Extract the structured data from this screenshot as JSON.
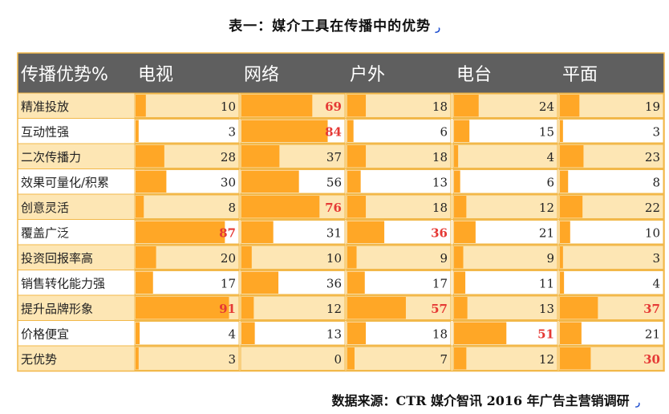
{
  "title": "表一：媒介工具在传播中的优势",
  "title_mark": "ر",
  "source": "数据来源：CTR 媒介智讯 2016 年广告主营销调研",
  "source_mark": "ر",
  "colors": {
    "header_bg": "#5f5f5f",
    "header_text": "#ffffff",
    "bar": "#ffa726",
    "row_alt": "#fde6b4",
    "row_plain": "#ffffff",
    "border": "#f2b84a",
    "highlight_text": "#e53935",
    "normal_text": "#222222"
  },
  "chart_data": {
    "type": "table",
    "header_label": "传播优势%",
    "columns": [
      "电视",
      "网络",
      "户外",
      "电台",
      "平面"
    ],
    "max_value": 100,
    "rows": [
      {
        "label": "精准投放",
        "values": [
          10,
          69,
          18,
          24,
          19
        ],
        "highlight": [
          false,
          true,
          false,
          false,
          false
        ]
      },
      {
        "label": "互动性强",
        "values": [
          3,
          84,
          6,
          15,
          3
        ],
        "highlight": [
          false,
          true,
          false,
          false,
          false
        ]
      },
      {
        "label": "二次传播力",
        "values": [
          28,
          37,
          18,
          4,
          23
        ],
        "highlight": [
          false,
          false,
          false,
          false,
          false
        ]
      },
      {
        "label": "效果可量化/积累",
        "values": [
          30,
          56,
          13,
          6,
          8
        ],
        "highlight": [
          false,
          false,
          false,
          false,
          false
        ]
      },
      {
        "label": "创意灵活",
        "values": [
          8,
          76,
          18,
          12,
          22
        ],
        "highlight": [
          false,
          true,
          false,
          false,
          false
        ]
      },
      {
        "label": "覆盖广泛",
        "values": [
          87,
          31,
          36,
          21,
          10
        ],
        "highlight": [
          true,
          false,
          true,
          false,
          false
        ]
      },
      {
        "label": "投资回报率高",
        "values": [
          20,
          10,
          9,
          9,
          3
        ],
        "highlight": [
          false,
          false,
          false,
          false,
          false
        ]
      },
      {
        "label": "销售转化能力强",
        "values": [
          17,
          36,
          17,
          11,
          4
        ],
        "highlight": [
          false,
          false,
          false,
          false,
          false
        ]
      },
      {
        "label": "提升品牌形象",
        "values": [
          91,
          12,
          57,
          13,
          37
        ],
        "highlight": [
          true,
          false,
          true,
          false,
          true
        ]
      },
      {
        "label": "价格便宜",
        "values": [
          4,
          13,
          18,
          51,
          21
        ],
        "highlight": [
          false,
          false,
          false,
          true,
          false
        ]
      },
      {
        "label": "无优势",
        "values": [
          3,
          0,
          7,
          12,
          30
        ],
        "highlight": [
          false,
          false,
          false,
          false,
          true
        ]
      }
    ]
  }
}
